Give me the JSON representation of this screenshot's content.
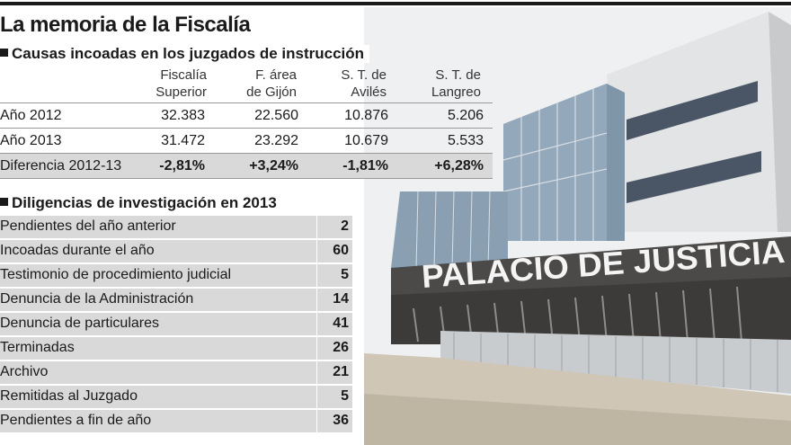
{
  "title": "La memoria de la Fiscalía",
  "section1": {
    "heading": "Causas incoadas en los juzgados de instrucción",
    "columns": [
      {
        "line1": "Fiscalía",
        "line2": "Superior"
      },
      {
        "line1": "F. área",
        "line2": "de Gijón"
      },
      {
        "line1": "S. T. de",
        "line2": "Avilés"
      },
      {
        "line1": "S. T. de",
        "line2": "Langreo"
      }
    ],
    "rows": [
      {
        "label": "Año 2012",
        "values": [
          "32.383",
          "22.560",
          "10.876",
          "5.206"
        ]
      },
      {
        "label": "Año 2013",
        "values": [
          "31.472",
          "23.292",
          "10.679",
          "5.533"
        ]
      },
      {
        "label": "Diferencia 2012-13",
        "values": [
          "-2,81%",
          "+3,24%",
          "-1,81%",
          "+6,28%"
        ]
      }
    ]
  },
  "section2": {
    "heading": "Diligencias de investigación en 2013",
    "rows": [
      {
        "label": "Pendientes del año anterior",
        "value": "2"
      },
      {
        "label": "Incoadas durante el año",
        "value": "60"
      },
      {
        "label": "Testimonio de procedimiento  judicial",
        "value": "5"
      },
      {
        "label": "Denuncia de la Administración",
        "value": "14"
      },
      {
        "label": "Denuncia de particulares",
        "value": "41"
      },
      {
        "label": "Terminadas",
        "value": "26"
      },
      {
        "label": "Archivo",
        "value": "21"
      },
      {
        "label": "Remitidas al Juzgado",
        "value": "5"
      },
      {
        "label": "Pendientes a fin de año",
        "value": "36"
      }
    ]
  },
  "photo": {
    "sign_text": "PALACIO DE JUSTICIA"
  }
}
